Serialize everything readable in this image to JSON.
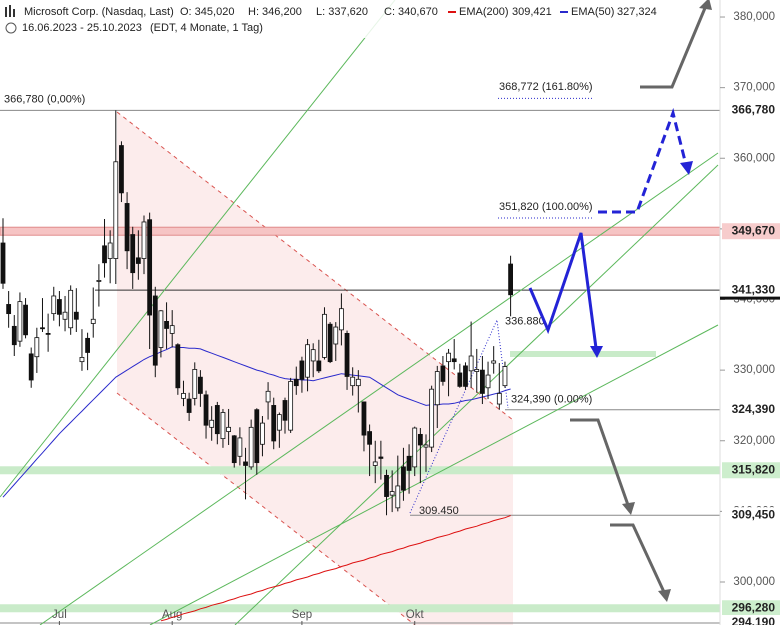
{
  "chart_data": {
    "type": "candlestick",
    "title": "Microsoft Corp. (Nasdaq, Last)",
    "ohlc_labels": [
      "O: 345,020",
      "H: 346,200",
      "L: 337,620",
      "C: 340,670"
    ],
    "date_range": "16.06.2023 - 25.10.2023",
    "period_note": "(EDT, 4 Monate, 1 Tag)",
    "categories": [
      null,
      null,
      null,
      null,
      null,
      null,
      null,
      null,
      null,
      null,
      "Jul",
      null,
      null,
      null,
      null,
      null,
      null,
      null,
      null,
      null,
      null,
      null,
      null,
      null,
      null,
      null,
      null,
      null,
      null,
      null,
      "Aug",
      null,
      null,
      null,
      null,
      null,
      null,
      null,
      null,
      null,
      null,
      null,
      null,
      null,
      null,
      null,
      null,
      null,
      null,
      null,
      null,
      null,
      null,
      "Sep",
      null,
      null,
      null,
      null,
      null,
      null,
      null,
      null,
      null,
      null,
      null,
      null,
      null,
      null,
      null,
      null,
      null,
      null,
      null,
      "Okt",
      null,
      null,
      null,
      null,
      null,
      null,
      null,
      null,
      null,
      null,
      null,
      null,
      null,
      null,
      null,
      null,
      null
    ],
    "candles": {
      "open": [
        348.0,
        339.3,
        336.2,
        334.1,
        339.2,
        332.3,
        331.9,
        336.0,
        335.2,
        338.0,
        340.0,
        337.2,
        336.0,
        338.2,
        331.2,
        334.5,
        336.6,
        342.6,
        347.6,
        345.8,
        345.8,
        361.8,
        353.6,
        349.2,
        345.9,
        345.8,
        351.3,
        340.5,
        333.2,
        336.9,
        335.2,
        333.6,
        326.0,
        325.9,
        326.0,
        329.0,
        326.5,
        321.9,
        325.0,
        320.3,
        321.3,
        320.7,
        317.8,
        317.0,
        316.3,
        324.4,
        319.5,
        325.5,
        325.0,
        321.5,
        325.7,
        321.5,
        328.7,
        331.3,
        329.0,
        331.3,
        331.3,
        331.8,
        336.5,
        333.7,
        335.7,
        335.2,
        327.8,
        327.8,
        325.5,
        321.3,
        316.5,
        317.7,
        315.1,
        312.3,
        310.5,
        316.3,
        317.8,
        316.3,
        320.9,
        319.1,
        319.1,
        325.1,
        330.6,
        331.2,
        331.6,
        329.6,
        330.6,
        329.9,
        329.8,
        330.0,
        327.5,
        331.0,
        325.2,
        327.8,
        345.02
      ],
      "high": [
        351.5,
        341.2,
        337.8,
        341.0,
        340.2,
        333.2,
        336.0,
        340.2,
        338.0,
        341.8,
        341.2,
        340.5,
        342.0,
        341.6,
        335.8,
        335.3,
        341.7,
        345.0,
        351.4,
        349.8,
        366.78,
        362.4,
        355.2,
        350.3,
        349.8,
        351.9,
        352.3,
        341.8,
        338.5,
        339.6,
        338.5,
        333.8,
        328.5,
        326.8,
        331.1,
        330.0,
        327.1,
        324.9,
        325.5,
        324.5,
        324.5,
        320.8,
        321.9,
        319.0,
        323.0,
        324.6,
        323.5,
        328.3,
        326.1,
        324.0,
        326.1,
        328.9,
        330.5,
        331.9,
        334.4,
        333.8,
        334.3,
        338.9,
        336.8,
        336.8,
        340.86,
        335.6,
        330.4,
        330.0,
        325.5,
        322.3,
        320.0,
        320.0,
        315.9,
        315.8,
        317.9,
        319.0,
        319.5,
        322.0,
        321.8,
        320.9,
        327.8,
        330.6,
        332.0,
        333.0,
        334.4,
        330.9,
        331.1,
        336.88,
        333.0,
        332.0,
        331.2,
        333.4,
        331.0,
        331.2,
        346.2
      ],
      "low": [
        341.5,
        336.0,
        332.0,
        333.3,
        334.5,
        327.5,
        329.6,
        335.4,
        332.6,
        337.0,
        336.2,
        335.5,
        335.0,
        335.4,
        329.9,
        330.0,
        334.6,
        339.0,
        343.1,
        342.3,
        342.2,
        353.8,
        344.3,
        341.5,
        342.8,
        343.6,
        333.0,
        329.0,
        331.8,
        333.0,
        333.2,
        326.5,
        324.9,
        322.8,
        325.0,
        324.8,
        320.3,
        320.0,
        319.5,
        319.0,
        319.4,
        316.2,
        316.5,
        311.7,
        315.9,
        315.2,
        317.8,
        323.0,
        318.8,
        319.0,
        321.0,
        321.1,
        326.5,
        326.8,
        327.0,
        329.0,
        329.6,
        331.5,
        331.0,
        331.3,
        333.5,
        327.2,
        326.4,
        324.0,
        318.5,
        315.0,
        314.0,
        314.5,
        309.45,
        309.9,
        310.0,
        311.5,
        312.5,
        315.0,
        314.0,
        315.6,
        318.4,
        321.8,
        327.8,
        326.3,
        330.1,
        327.5,
        327.2,
        327.5,
        326.8,
        325.2,
        325.9,
        329.5,
        324.39,
        327.5,
        337.62
      ],
      "close": [
        342.3,
        338.0,
        333.6,
        339.7,
        335.0,
        328.6,
        334.6,
        335.9,
        335.1,
        340.5,
        337.9,
        338.2,
        341.3,
        337.2,
        331.8,
        332.5,
        337.2,
        342.7,
        345.2,
        348.0,
        359.5,
        355.1,
        346.9,
        343.8,
        345.1,
        350.98,
        337.8,
        330.7,
        338.4,
        335.9,
        336.3,
        327.5,
        326.7,
        324.0,
        330.1,
        326.7,
        322.2,
        322.9,
        321.0,
        324.0,
        321.9,
        316.9,
        320.4,
        316.5,
        321.9,
        316.9,
        322.5,
        327.0,
        319.97,
        323.7,
        322.9,
        328.4,
        327.8,
        328.7,
        333.6,
        332.9,
        329.9,
        337.9,
        331.2,
        336.1,
        338.7,
        329.1,
        329.0,
        328.7,
        320.8,
        319.5,
        317.0,
        317.5,
        312.1,
        312.8,
        313.6,
        313.0,
        315.8,
        321.8,
        319.4,
        319.4,
        327.3,
        329.8,
        328.4,
        332.4,
        331.2,
        327.7,
        327.7,
        332.0,
        330.1,
        326.7,
        329.3,
        331.3,
        326.7,
        330.5,
        340.67
      ]
    },
    "series": [
      {
        "name": "EMA(200)",
        "color": "#dd1111",
        "last_label": "309,421",
        "values": [
          null,
          null,
          null,
          null,
          null,
          null,
          null,
          null,
          null,
          null,
          null,
          null,
          null,
          null,
          null,
          null,
          null,
          null,
          null,
          null,
          null,
          null,
          null,
          null,
          null,
          null,
          null,
          null,
          294.5,
          294.7,
          295.0,
          295.2,
          295.5,
          295.7,
          295.9,
          296.2,
          296.4,
          296.7,
          296.9,
          297.1,
          297.4,
          297.6,
          297.9,
          298.1,
          298.3,
          298.6,
          298.8,
          299.1,
          299.3,
          299.5,
          299.8,
          300.0,
          300.3,
          300.5,
          300.7,
          301.0,
          301.2,
          301.5,
          301.7,
          301.9,
          302.2,
          302.4,
          302.7,
          302.9,
          303.1,
          303.4,
          303.6,
          303.9,
          304.1,
          304.3,
          304.6,
          304.8,
          305.1,
          305.3,
          305.5,
          305.8,
          306.0,
          306.3,
          306.5,
          306.7,
          307.0,
          307.2,
          307.5,
          307.7,
          307.9,
          308.2,
          308.4,
          308.7,
          308.9,
          309.1,
          309.421
        ]
      },
      {
        "name": "EMA(50)",
        "color": "#2a2acc",
        "last_label": "327,324",
        "values": [
          312.0,
          312.9,
          313.8,
          314.7,
          315.6,
          316.5,
          317.4,
          318.3,
          319.2,
          320.1,
          321.0,
          321.8,
          322.6,
          323.4,
          324.2,
          325.0,
          325.8,
          326.6,
          327.4,
          328.2,
          329.0,
          329.5,
          330.0,
          330.5,
          331.0,
          331.5,
          331.9,
          332.2,
          332.6,
          332.9,
          333.3,
          333.2,
          333.2,
          333.1,
          333.1,
          333.0,
          332.7,
          332.4,
          332.1,
          331.8,
          331.5,
          331.2,
          330.9,
          330.6,
          330.3,
          330.0,
          329.8,
          329.5,
          329.3,
          329.0,
          328.8,
          328.7,
          328.7,
          328.6,
          328.6,
          328.5,
          328.7,
          328.9,
          329.1,
          329.3,
          329.5,
          329.4,
          329.3,
          329.2,
          329.1,
          329.0,
          328.5,
          328.0,
          327.5,
          327.0,
          326.5,
          326.2,
          325.9,
          325.6,
          325.3,
          325.0,
          325.1,
          325.1,
          325.2,
          325.2,
          325.3,
          325.5,
          325.7,
          325.8,
          326.0,
          326.2,
          326.4,
          326.6,
          326.8,
          327.1,
          327.324
        ]
      }
    ],
    "ylim": [
      293.91,
      382.41
    ],
    "yticks": [
      {
        "value": 300,
        "label": "300,000"
      },
      {
        "value": 310,
        "label": "310,000"
      },
      {
        "value": 320,
        "label": "320,000"
      },
      {
        "value": 330,
        "label": "330,000"
      },
      {
        "value": 340,
        "label": "340,000"
      },
      {
        "value": 350,
        "label": "350,000"
      },
      {
        "value": 360,
        "label": "360,000"
      },
      {
        "value": 370,
        "label": "370,000"
      },
      {
        "value": 380,
        "label": "380,000"
      }
    ],
    "levels": [
      {
        "value": 366.78,
        "label": "366,780",
        "style": "line"
      },
      {
        "value": 349.67,
        "label": "349,670",
        "style": "red-band"
      },
      {
        "value": 341.33,
        "label": "341,330",
        "style": "line"
      },
      {
        "value": 324.39,
        "label": "324,390",
        "style": "line"
      },
      {
        "value": 315.82,
        "label": "315,820",
        "style": "green-band"
      },
      {
        "value": 309.45,
        "label": "309,450",
        "style": "line"
      },
      {
        "value": 296.28,
        "label": "296,280",
        "style": "green-band"
      },
      {
        "value": 294.19,
        "label": "294,190",
        "style": "line"
      }
    ],
    "annotations": [
      {
        "value": 366.78,
        "label": "366,780 (0,00%)"
      },
      {
        "value": 368.772,
        "label": "368,772 (161.80%)"
      },
      {
        "value": 351.82,
        "label": "351,820 (100.00%)"
      },
      {
        "value": 336.88,
        "label": "336.880"
      },
      {
        "value": 324.39,
        "label": "324,390 (0.00%)"
      },
      {
        "value": 309.45,
        "label": "309.450"
      }
    ]
  }
}
